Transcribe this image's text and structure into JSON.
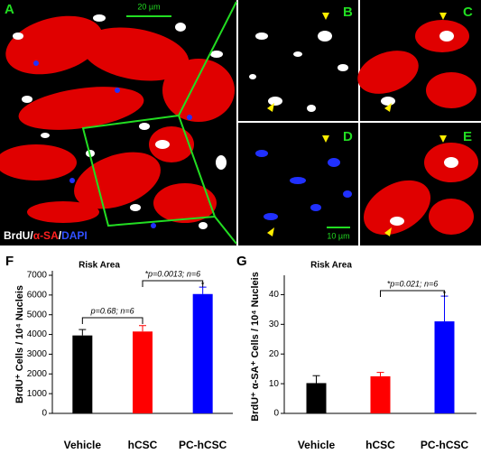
{
  "figure": {
    "panels": [
      "A",
      "B",
      "C",
      "D",
      "E"
    ],
    "scale_bars": [
      "20 µm",
      "10 µm"
    ],
    "stain": [
      "BrdU",
      "/",
      "α-SA",
      "/",
      "DAPI"
    ]
  },
  "chart_data": [
    {
      "type": "bar",
      "panel": "F",
      "title": "Risk Area",
      "y_label": "BrdU⁺ Cells / 10⁴ Nucleis",
      "categories": [
        "Vehicle",
        "hCSC",
        "PC-hCSC"
      ],
      "values": [
        3950,
        4150,
        6050
      ],
      "errors": [
        300,
        300,
        350
      ],
      "colors": [
        "#000000",
        "#ff0000",
        "#0000ff"
      ],
      "ylim": [
        0,
        7000
      ],
      "yticks": [
        0,
        1000,
        2000,
        3000,
        4000,
        5000,
        6000,
        7000
      ],
      "annotations": [
        "p=0.68; n=6",
        "*p=0.0013; n=6",
        "*"
      ]
    },
    {
      "type": "bar",
      "panel": "G",
      "title": "Risk Area",
      "y_label": "BrdU⁺ α-SA⁺ Cells / 10⁴ Nucleis",
      "categories": [
        "Vehicle",
        "hCSC",
        "PC-hCSC"
      ],
      "values": [
        10.2,
        12.5,
        31
      ],
      "errors": [
        2.5,
        1.3,
        8.5
      ],
      "colors": [
        "#000000",
        "#ff0000",
        "#0000ff"
      ],
      "ylim": [
        0,
        45
      ],
      "yticks": [
        0,
        10,
        20,
        30,
        40
      ],
      "annotations": [
        "*p=0.021; n=6",
        "*"
      ]
    }
  ]
}
